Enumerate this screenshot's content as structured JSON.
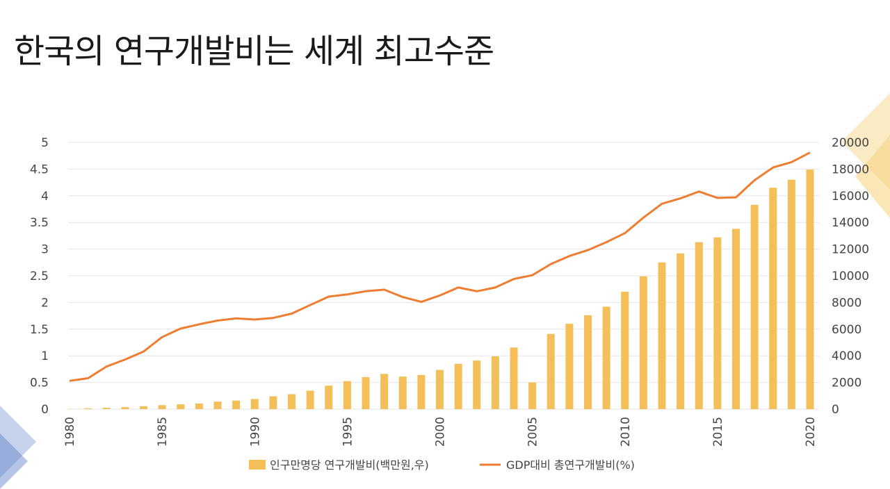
{
  "page": {
    "title": "한국의 연구개발비는 세계 최고수준"
  },
  "colors": {
    "bar": "#F4BE58",
    "line": "#ED7D31",
    "grid": "#E4E4E4",
    "axis_text": "#444444",
    "deco_blue": "#5B7FC8",
    "deco_yellow": "#F7D27E"
  },
  "chart_data": {
    "type": "bar",
    "title": "",
    "categories": [
      "1980",
      "1981",
      "1982",
      "1983",
      "1984",
      "1985",
      "1986",
      "1987",
      "1988",
      "1989",
      "1990",
      "1991",
      "1992",
      "1993",
      "1994",
      "1995",
      "1996",
      "1997",
      "1998",
      "1999",
      "2000",
      "2001",
      "2002",
      "2003",
      "2004",
      "2005",
      "2006",
      "2007",
      "2008",
      "2009",
      "2010",
      "2011",
      "2012",
      "2013",
      "2014",
      "2015",
      "2016",
      "2017",
      "2018",
      "2019",
      "2020"
    ],
    "x_tick_labels": [
      "1980",
      "1985",
      "1990",
      "1995",
      "2000",
      "2005",
      "2010",
      "2015",
      "2020"
    ],
    "series": [
      {
        "name": "인구만명당 연구개발비(백만원,우)",
        "type": "bar",
        "axis": "right",
        "values": [
          10,
          60,
          100,
          150,
          220,
          300,
          360,
          420,
          560,
          640,
          760,
          960,
          1120,
          1380,
          1760,
          2100,
          2400,
          2640,
          2440,
          2560,
          2940,
          3400,
          3640,
          3960,
          4620,
          2000,
          5640,
          6400,
          7040,
          7680,
          8800,
          9960,
          11000,
          11680,
          12520,
          12880,
          13520,
          15320,
          16600,
          17200,
          17960
        ]
      },
      {
        "name": "GDP대비 총연구개발비(%)",
        "type": "line",
        "axis": "left",
        "values": [
          0.53,
          0.58,
          0.8,
          0.93,
          1.08,
          1.35,
          1.51,
          1.59,
          1.66,
          1.7,
          1.68,
          1.71,
          1.79,
          1.95,
          2.11,
          2.15,
          2.21,
          2.24,
          2.1,
          2.01,
          2.13,
          2.28,
          2.21,
          2.28,
          2.44,
          2.51,
          2.72,
          2.87,
          2.98,
          3.13,
          3.3,
          3.59,
          3.85,
          3.95,
          4.08,
          3.96,
          3.97,
          4.29,
          4.53,
          4.63,
          4.81
        ]
      }
    ],
    "y_left": {
      "range": [
        0,
        5
      ],
      "ticks": [
        "0",
        "0.5",
        "1",
        "1.5",
        "2",
        "2.5",
        "3",
        "3.5",
        "4",
        "4.5",
        "5"
      ]
    },
    "y_right": {
      "range": [
        0,
        20000
      ],
      "ticks": [
        "0",
        "2000",
        "4000",
        "6000",
        "8000",
        "10000",
        "12000",
        "14000",
        "16000",
        "18000",
        "20000"
      ]
    },
    "xlabel": "",
    "ylabel": "",
    "grid": true,
    "legend": {
      "position": "bottom",
      "entries": [
        "인구만명당 연구개발비(백만원,우)",
        "GDP대비 총연구개발비(%)"
      ]
    }
  }
}
